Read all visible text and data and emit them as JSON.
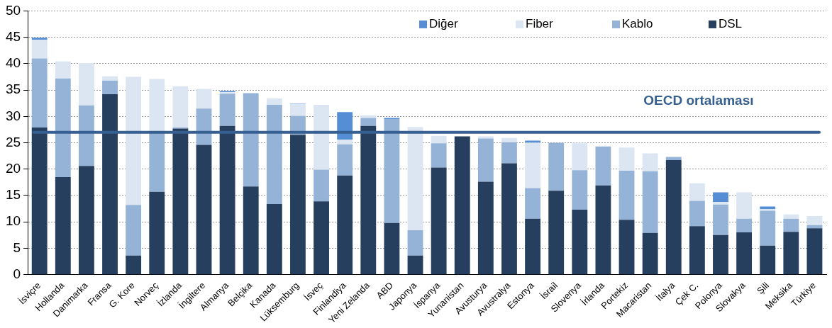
{
  "chart_data": {
    "type": "bar",
    "stacked": true,
    "categories": [
      "İsviçre",
      "Hollanda",
      "Danimarka",
      "Fransa",
      "G. Kore",
      "Norveç",
      "İzlanda",
      "İngiltere",
      "Almanya",
      "Belçika",
      "Kanada",
      "Lüksemburg",
      "İsveç",
      "Finlandiya",
      "Yeni Zelanda",
      "ABD",
      "Japonya",
      "İspanya",
      "Yunanistan",
      "Avusturya",
      "Avustralya",
      "Estonya",
      "İsrail",
      "Slovenya",
      "İrlanda",
      "Portekiz",
      "Macaristan",
      "İtalya",
      "Çek C.",
      "Polonya",
      "Slovakya",
      "Şili",
      "Meksika",
      "Türkiye"
    ],
    "series": [
      {
        "name": "DSL",
        "color": "#263f5f",
        "values": [
          27.9,
          18.5,
          20.6,
          34.2,
          3.6,
          15.7,
          27.7,
          24.6,
          28.2,
          16.7,
          13.4,
          26.5,
          13.9,
          18.8,
          28.2,
          9.8,
          3.6,
          20.3,
          26.2,
          17.6,
          21.1,
          10.6,
          15.9,
          12.3,
          16.9,
          10.4,
          7.9,
          21.7,
          9.2,
          7.5,
          8.0,
          5.5,
          8.1,
          8.8
        ]
      },
      {
        "name": "Kablo",
        "color": "#95b3d7",
        "values": [
          13.1,
          18.7,
          11.5,
          2.6,
          9.6,
          11.3,
          0.2,
          6.9,
          6.1,
          17.7,
          18.8,
          3.6,
          6.0,
          5.9,
          1.5,
          19.7,
          4.8,
          4.6,
          0,
          8.2,
          4.0,
          5.8,
          9.1,
          7.5,
          7.4,
          9.3,
          11.7,
          0.6,
          4.8,
          5.8,
          2.6,
          6.6,
          2.5,
          0.6
        ]
      },
      {
        "name": "Fiber",
        "color": "#dce6f2",
        "values": [
          3.5,
          3.2,
          8.0,
          0.8,
          24.3,
          10.1,
          7.8,
          3.7,
          0.3,
          0,
          1.2,
          2.2,
          12.3,
          0.9,
          0.5,
          0,
          19.6,
          1.4,
          0,
          0.4,
          0.8,
          8.6,
          0,
          5.2,
          0,
          4.4,
          3.4,
          0,
          3.3,
          0.5,
          5.0,
          0.3,
          0.8,
          1.7
        ]
      },
      {
        "name": "Diğer",
        "color": "#558ed5",
        "values": [
          0.4,
          0,
          0,
          0,
          0,
          0,
          0,
          0,
          0.2,
          0,
          0,
          0.1,
          0,
          5.2,
          0,
          0.2,
          0,
          0,
          0,
          0,
          0,
          0.4,
          0,
          0,
          0,
          0,
          0,
          0,
          0,
          1.8,
          0,
          0.5,
          0,
          0
        ]
      }
    ],
    "ylim": [
      0,
      50
    ],
    "yticks": [
      0,
      5,
      10,
      15,
      20,
      25,
      30,
      35,
      40,
      45,
      50
    ],
    "grid": "y",
    "legend": "top right",
    "ref_lines": [
      {
        "axis": "y",
        "value": 27,
        "label": "OECD ortalaması",
        "color": "#376092"
      }
    ]
  }
}
